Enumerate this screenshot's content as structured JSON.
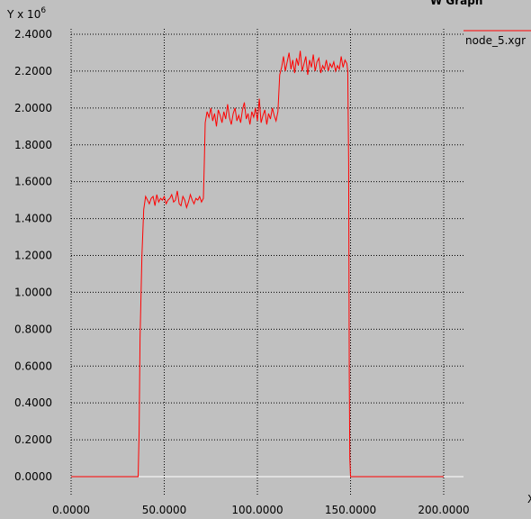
{
  "window_title_fragment": "W Graph",
  "chart_data": {
    "type": "line",
    "title": "",
    "xlabel": "X",
    "ylabel_prefix": "Y x 10",
    "ylabel_exponent": "6",
    "xlim": [
      0,
      200
    ],
    "ylim": [
      0,
      2.4
    ],
    "x_ticks": [
      "0.0000",
      "50.0000",
      "100.0000",
      "150.0000",
      "200.0000"
    ],
    "x_tick_values": [
      0,
      50,
      100,
      150,
      200
    ],
    "y_ticks": [
      "0.0000",
      "0.2000",
      "0.4000",
      "0.6000",
      "0.8000",
      "1.0000",
      "1.2000",
      "1.4000",
      "1.6000",
      "1.8000",
      "2.0000",
      "2.2000",
      "2.4000"
    ],
    "y_tick_values": [
      0,
      0.2,
      0.4,
      0.6,
      0.8,
      1.0,
      1.2,
      1.4,
      1.6,
      1.8,
      2.0,
      2.2,
      2.4
    ],
    "grid": true,
    "legend_position": "top-right",
    "colors": {
      "series": "#ff0000",
      "background": "#c0c0c0",
      "grid": "#000000"
    },
    "series": [
      {
        "name": "node_5.xgr",
        "x": [
          0,
          10,
          20,
          30,
          36,
          36.5,
          37,
          38,
          39,
          40,
          41,
          42,
          43,
          44,
          45,
          46,
          47,
          48,
          49,
          50,
          51,
          52,
          53,
          54,
          55,
          56,
          57,
          58,
          59,
          60,
          61,
          62,
          63,
          64,
          65,
          66,
          67,
          68,
          69,
          70,
          71,
          71.5,
          72,
          73,
          74,
          75,
          76,
          77,
          78,
          79,
          80,
          81,
          82,
          83,
          84,
          85,
          86,
          87,
          88,
          89,
          90,
          91,
          92,
          93,
          94,
          95,
          96,
          97,
          98,
          99,
          100,
          101,
          102,
          103,
          104,
          105,
          106,
          107,
          108,
          109,
          110,
          111,
          112,
          113,
          114,
          115,
          116,
          117,
          118,
          119,
          120,
          121,
          122,
          123,
          124,
          125,
          126,
          127,
          128,
          129,
          130,
          131,
          132,
          133,
          134,
          135,
          136,
          137,
          138,
          139,
          140,
          141,
          142,
          143,
          144,
          145,
          146,
          147,
          148,
          148.5,
          149,
          149.3,
          149.6,
          150,
          160,
          170,
          180,
          190,
          200
        ],
        "values": [
          0,
          0,
          0,
          0,
          0,
          0.25,
          0.75,
          1.2,
          1.45,
          1.52,
          1.5,
          1.48,
          1.51,
          1.52,
          1.47,
          1.53,
          1.49,
          1.51,
          1.5,
          1.52,
          1.48,
          1.5,
          1.51,
          1.53,
          1.49,
          1.5,
          1.55,
          1.48,
          1.47,
          1.52,
          1.5,
          1.46,
          1.49,
          1.53,
          1.5,
          1.48,
          1.51,
          1.5,
          1.52,
          1.49,
          1.51,
          1.7,
          1.92,
          1.98,
          1.95,
          2.0,
          1.93,
          1.97,
          1.9,
          1.99,
          1.96,
          1.92,
          1.98,
          1.94,
          2.02,
          1.95,
          1.91,
          1.97,
          2.0,
          1.93,
          1.96,
          1.92,
          1.99,
          2.03,
          1.94,
          1.97,
          1.91,
          1.98,
          1.95,
          2.0,
          1.93,
          2.05,
          1.92,
          1.96,
          1.99,
          1.91,
          1.97,
          1.94,
          2.0,
          1.96,
          1.93,
          1.98,
          2.18,
          2.22,
          2.28,
          2.2,
          2.25,
          2.3,
          2.21,
          2.26,
          2.19,
          2.27,
          2.23,
          2.31,
          2.2,
          2.24,
          2.28,
          2.18,
          2.26,
          2.22,
          2.29,
          2.2,
          2.25,
          2.27,
          2.19,
          2.23,
          2.21,
          2.26,
          2.2,
          2.24,
          2.22,
          2.25,
          2.2,
          2.23,
          2.21,
          2.28,
          2.22,
          2.26,
          2.24,
          2.2,
          1.7,
          0.55,
          0.1,
          0,
          0,
          0,
          0,
          0,
          0
        ]
      }
    ]
  }
}
